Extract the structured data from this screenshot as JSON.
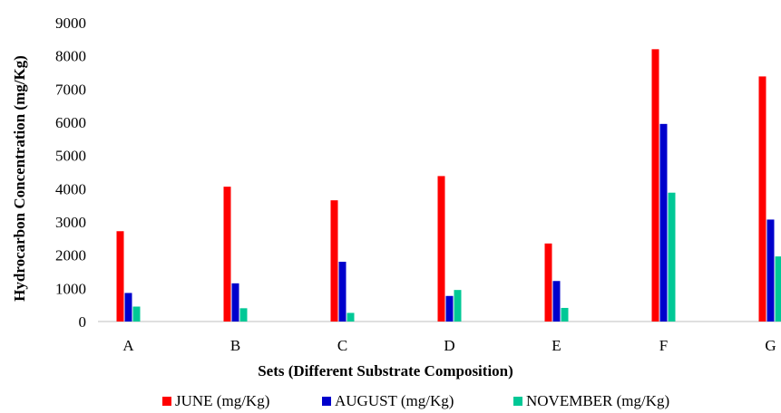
{
  "chart_data": {
    "type": "bar",
    "title": "",
    "xlabel": "Sets (Different Substrate Composition)",
    "ylabel": "Hydrocarbon Concentration (mg/Kg)",
    "ylim": [
      0,
      9000
    ],
    "yticks": [
      "0",
      "1000",
      "2000",
      "3000",
      "4000",
      "5000",
      "6000",
      "7000",
      "8000",
      "9000"
    ],
    "categories": [
      "A",
      "B",
      "C",
      "D",
      "E",
      "F",
      "G"
    ],
    "grid": false,
    "legend_position": "bottom",
    "series": [
      {
        "name": "JUNE (mg/Kg)",
        "color": "#ff0000",
        "values": [
          2720,
          4060,
          3650,
          4380,
          2350,
          8200,
          7380
        ]
      },
      {
        "name": "AUGUST (mg/Kg)",
        "color": "#0000cc",
        "values": [
          860,
          1150,
          1800,
          770,
          1220,
          5950,
          3070
        ]
      },
      {
        "name": "NOVEMBER (mg/Kg)",
        "color": "#00c896",
        "values": [
          450,
          400,
          260,
          950,
          410,
          3880,
          1960
        ]
      }
    ]
  }
}
